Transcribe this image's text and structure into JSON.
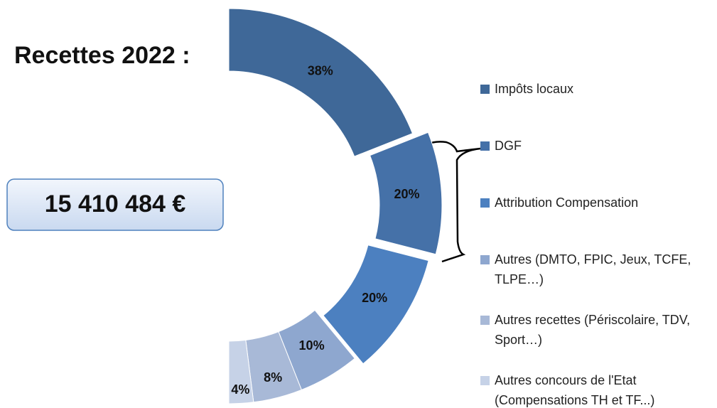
{
  "chart_data": {
    "type": "pie",
    "title": "Recettes 2022 :",
    "total": "15 410 484 €",
    "categories": [
      "Impôts locaux",
      "DGF",
      "Attribution Compensation",
      "Autres (DMTO, FPIC, Jeux, TCFE, TLPE…)",
      "Autres recettes (Périscolaire, TDV, Sport…)",
      "Autres concours de l'Etat (Compensations TH et TF...)"
    ],
    "values": [
      38,
      20,
      20,
      10,
      8,
      4
    ],
    "value_labels": [
      "38%",
      "20%",
      "20%",
      "10%",
      "8%",
      "4%"
    ],
    "colors": [
      "#3f6898",
      "#4571a8",
      "#4c80c0",
      "#8ea7cf",
      "#a8b9d7",
      "#c6d2e7"
    ]
  }
}
